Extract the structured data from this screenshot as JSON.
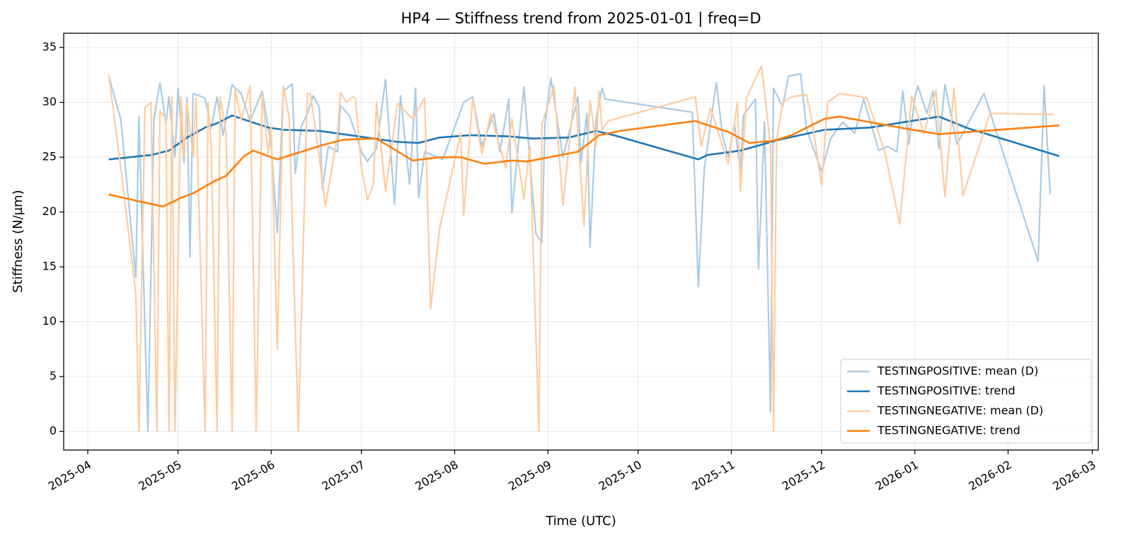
{
  "chart_data": {
    "type": "line",
    "title": "HP4 — Stiffness trend from 2025-01-01 | freq=D",
    "xlabel": "Time (UTC)",
    "ylabel": "Stiffness (N/µm)",
    "xlim": [
      "2025-03-24",
      "2026-03-03"
    ],
    "xticks": [
      {
        "value": "2025-04-01",
        "label": "2025-04"
      },
      {
        "value": "2025-05-01",
        "label": "2025-05"
      },
      {
        "value": "2025-06-01",
        "label": "2025-06"
      },
      {
        "value": "2025-07-01",
        "label": "2025-07"
      },
      {
        "value": "2025-08-01",
        "label": "2025-08"
      },
      {
        "value": "2025-09-01",
        "label": "2025-09"
      },
      {
        "value": "2025-10-01",
        "label": "2025-10"
      },
      {
        "value": "2025-11-01",
        "label": "2025-11"
      },
      {
        "value": "2025-12-01",
        "label": "2025-12"
      },
      {
        "value": "2026-01-01",
        "label": "2026-01"
      },
      {
        "value": "2026-02-01",
        "label": "2026-02"
      },
      {
        "value": "2026-03-01",
        "label": "2026-03"
      }
    ],
    "ylim": [
      -1.7,
      36.3
    ],
    "yticks": [
      0,
      5,
      10,
      15,
      20,
      25,
      30,
      35
    ],
    "grid": true,
    "legend": "lower right",
    "series": [
      {
        "name": "TESTINGPOSITIVE: mean (D)",
        "color": "#a9cbe4",
        "width": 2.2,
        "x": [
          "2025-04-08",
          "2025-04-12",
          "2025-04-17",
          "2025-04-18",
          "2025-04-21",
          "2025-04-23",
          "2025-04-25",
          "2025-04-27",
          "2025-04-28",
          "2025-04-30",
          "2025-05-01",
          "2025-05-03",
          "2025-05-04",
          "2025-05-05",
          "2025-05-06",
          "2025-05-10",
          "2025-05-12",
          "2025-05-14",
          "2025-05-16",
          "2025-05-19",
          "2025-05-22",
          "2025-05-25",
          "2025-05-29",
          "2025-06-01",
          "2025-06-03",
          "2025-06-05",
          "2025-06-08",
          "2025-06-09",
          "2025-06-11",
          "2025-06-13",
          "2025-06-15",
          "2025-06-17",
          "2025-06-18",
          "2025-06-20",
          "2025-06-23",
          "2025-06-24",
          "2025-06-27",
          "2025-07-01",
          "2025-07-03",
          "2025-07-06",
          "2025-07-09",
          "2025-07-12",
          "2025-07-14",
          "2025-07-17",
          "2025-07-19",
          "2025-07-20",
          "2025-07-22",
          "2025-07-28",
          "2025-08-04",
          "2025-08-07",
          "2025-08-10",
          "2025-08-14",
          "2025-08-16",
          "2025-08-19",
          "2025-08-20",
          "2025-08-24",
          "2025-08-28",
          "2025-08-30",
          "2025-08-31",
          "2025-09-02",
          "2025-09-06",
          "2025-09-11",
          "2025-09-12",
          "2025-09-14",
          "2025-09-15",
          "2025-09-17",
          "2025-09-19",
          "2025-09-20",
          "2025-10-19",
          "2025-10-21",
          "2025-10-23",
          "2025-10-27",
          "2025-10-29",
          "2025-10-31",
          "2025-11-02",
          "2025-11-04",
          "2025-11-05",
          "2025-11-09",
          "2025-11-10",
          "2025-11-12",
          "2025-11-14",
          "2025-11-15",
          "2025-11-18",
          "2025-11-20",
          "2025-11-24",
          "2025-11-26",
          "2025-12-01",
          "2025-12-04",
          "2025-12-08",
          "2025-12-12",
          "2025-12-15",
          "2025-12-20",
          "2025-12-23",
          "2025-12-26",
          "2025-12-28",
          "2025-12-30",
          "2026-01-01",
          "2026-01-02",
          "2026-01-05",
          "2026-01-07",
          "2026-01-09",
          "2026-01-11",
          "2026-01-15",
          "2026-01-24",
          "2026-02-11",
          "2026-02-13",
          "2026-02-15"
        ],
        "values": [
          32.4,
          28.4,
          14,
          28.7,
          0,
          28.5,
          31.8,
          28,
          30.5,
          25,
          31.3,
          24.5,
          30.4,
          15.9,
          30.8,
          30.4,
          27.6,
          30.5,
          27,
          31.6,
          30.8,
          28.3,
          31,
          26,
          18.1,
          31,
          31.7,
          23.5,
          27.8,
          29,
          30.6,
          29.5,
          22.1,
          26,
          25.5,
          29.7,
          28.8,
          25.5,
          24.6,
          25.8,
          32.1,
          20.7,
          30.6,
          22.5,
          31.3,
          21.3,
          25.5,
          24.8,
          30,
          30.5,
          26,
          29,
          25.5,
          30.3,
          19.9,
          31.4,
          18,
          17.2,
          28,
          32.2,
          25,
          30.5,
          24.5,
          29,
          16.8,
          28.5,
          31.3,
          30.3,
          29.1,
          13.2,
          24,
          31.8,
          27,
          25,
          28,
          23.8,
          28.8,
          30.3,
          14.8,
          28.2,
          1.8,
          31.3,
          29.6,
          32.4,
          32.6,
          27.5,
          23.7,
          26.7,
          28.2,
          27.2,
          30.3,
          25.6,
          26,
          25.5,
          31,
          26.2,
          30.4,
          31.5,
          29,
          31,
          25.8,
          31.6,
          26.2,
          30.8,
          15.5,
          31.5,
          21.6
        ]
      },
      {
        "name": "TESTINGPOSITIVE: trend",
        "color": "#1f77b4",
        "width": 2.6,
        "x": [
          "2025-04-08",
          "2025-04-22",
          "2025-04-28",
          "2025-05-04",
          "2025-05-10",
          "2025-05-14",
          "2025-05-19",
          "2025-05-31",
          "2025-06-05",
          "2025-06-17",
          "2025-06-30",
          "2025-07-13",
          "2025-07-20",
          "2025-07-27",
          "2025-08-06",
          "2025-08-19",
          "2025-08-27",
          "2025-09-08",
          "2025-09-17",
          "2025-09-23",
          "2025-10-21",
          "2025-10-24",
          "2025-11-04",
          "2025-11-17",
          "2025-12-02",
          "2025-12-17",
          "2026-01-09",
          "2026-01-19",
          "2026-02-18"
        ],
        "values": [
          24.8,
          25.2,
          25.6,
          26.8,
          27.7,
          28.1,
          28.8,
          27.7,
          27.5,
          27.4,
          26.9,
          26.4,
          26.3,
          26.8,
          27,
          26.9,
          26.7,
          26.8,
          27.4,
          27,
          24.8,
          25.2,
          25.6,
          26.6,
          27.5,
          27.7,
          28.7,
          27.6,
          25.1
        ]
      },
      {
        "name": "TESTINGNEGATIVE: mean (D)",
        "color": "#ffcb9f",
        "width": 2.2,
        "x": [
          "2025-04-08",
          "2025-04-12",
          "2025-04-17",
          "2025-04-18",
          "2025-04-20",
          "2025-04-22",
          "2025-04-24",
          "2025-04-25",
          "2025-04-27",
          "2025-04-28",
          "2025-04-29",
          "2025-04-30",
          "2025-05-02",
          "2025-05-03",
          "2025-05-04",
          "2025-05-06",
          "2025-05-07",
          "2025-05-10",
          "2025-05-11",
          "2025-05-12",
          "2025-05-14",
          "2025-05-15",
          "2025-05-17",
          "2025-05-19",
          "2025-05-20",
          "2025-05-22",
          "2025-05-25",
          "2025-05-27",
          "2025-05-29",
          "2025-05-31",
          "2025-06-01",
          "2025-06-03",
          "2025-06-05",
          "2025-06-07",
          "2025-06-10",
          "2025-06-13",
          "2025-06-14",
          "2025-06-17",
          "2025-06-19",
          "2025-06-23",
          "2025-06-24",
          "2025-06-26",
          "2025-06-28",
          "2025-06-29",
          "2025-07-01",
          "2025-07-03",
          "2025-07-05",
          "2025-07-06",
          "2025-07-09",
          "2025-07-13",
          "2025-07-18",
          "2025-07-22",
          "2025-07-24",
          "2025-07-27",
          "2025-08-03",
          "2025-08-04",
          "2025-08-07",
          "2025-08-10",
          "2025-08-13",
          "2025-08-18",
          "2025-08-20",
          "2025-08-24",
          "2025-08-26",
          "2025-08-29",
          "2025-08-30",
          "2025-09-03",
          "2025-09-06",
          "2025-09-10",
          "2025-09-13",
          "2025-09-15",
          "2025-09-17",
          "2025-09-18",
          "2025-09-19",
          "2025-09-21",
          "2025-10-20",
          "2025-10-22",
          "2025-10-25",
          "2025-10-31",
          "2025-11-03",
          "2025-11-04",
          "2025-11-06",
          "2025-11-11",
          "2025-11-12",
          "2025-11-14",
          "2025-11-15",
          "2025-11-16",
          "2025-11-18",
          "2025-11-21",
          "2025-11-26",
          "2025-11-28",
          "2025-12-01",
          "2025-12-03",
          "2025-12-07",
          "2025-12-12",
          "2025-12-16",
          "2025-12-22",
          "2025-12-27",
          "2025-12-31",
          "2026-01-04",
          "2026-01-08",
          "2026-01-11",
          "2026-01-14",
          "2026-01-17",
          "2026-01-26",
          "2026-02-16"
        ],
        "values": [
          32.5,
          24,
          12.5,
          0,
          29.5,
          30,
          0,
          29.2,
          28.5,
          0,
          30.5,
          0,
          30.5,
          25,
          30,
          25,
          30.4,
          0,
          30,
          26.3,
          0,
          30.5,
          27.2,
          0,
          31.2,
          28.4,
          31.5,
          0,
          30.8,
          25.3,
          27.8,
          7.5,
          31.5,
          28.5,
          0,
          30.8,
          30.8,
          25,
          20.5,
          27,
          30.9,
          30,
          30.5,
          30.4,
          24,
          21.1,
          22.5,
          30,
          21.9,
          29.9,
          28.5,
          30.4,
          11.2,
          18.5,
          27.2,
          19.7,
          30.4,
          25.3,
          28.9,
          24,
          28.5,
          21.2,
          26,
          0,
          28,
          31.5,
          20.6,
          31.4,
          18.7,
          30.2,
          26,
          31,
          27.5,
          28.3,
          30.5,
          26,
          29.5,
          24.4,
          30,
          21.9,
          30.4,
          33.3,
          31,
          26,
          0,
          26.5,
          30,
          30.5,
          30.7,
          28,
          22.4,
          30,
          30.8,
          30.6,
          30.4,
          25.5,
          18.9,
          30.6,
          27.1,
          31.1,
          21.4,
          31.3,
          21.5,
          29,
          28.9
        ]
      },
      {
        "name": "TESTINGNEGATIVE: trend",
        "color": "#ff7f0e",
        "width": 2.6,
        "x": [
          "2025-04-08",
          "2025-04-16",
          "2025-04-26",
          "2025-05-02",
          "2025-05-06",
          "2025-05-13",
          "2025-05-17",
          "2025-05-23",
          "2025-05-26",
          "2025-06-03",
          "2025-06-18",
          "2025-06-25",
          "2025-07-06",
          "2025-07-18",
          "2025-07-27",
          "2025-08-03",
          "2025-08-11",
          "2025-08-20",
          "2025-08-25",
          "2025-09-11",
          "2025-09-18",
          "2025-09-25",
          "2025-10-20",
          "2025-10-31",
          "2025-11-07",
          "2025-11-15",
          "2025-11-21",
          "2025-12-02",
          "2025-12-07",
          "2025-12-29",
          "2026-01-09",
          "2026-02-18"
        ],
        "values": [
          21.6,
          21.1,
          20.5,
          21.3,
          21.7,
          22.8,
          23.3,
          25.1,
          25.6,
          24.8,
          26.1,
          26.6,
          26.7,
          24.7,
          25,
          25,
          24.4,
          24.7,
          24.6,
          25.5,
          27,
          27.4,
          28.3,
          27.3,
          26.3,
          26.5,
          27,
          28.5,
          28.7,
          27.6,
          27.1,
          27.9
        ]
      }
    ]
  }
}
